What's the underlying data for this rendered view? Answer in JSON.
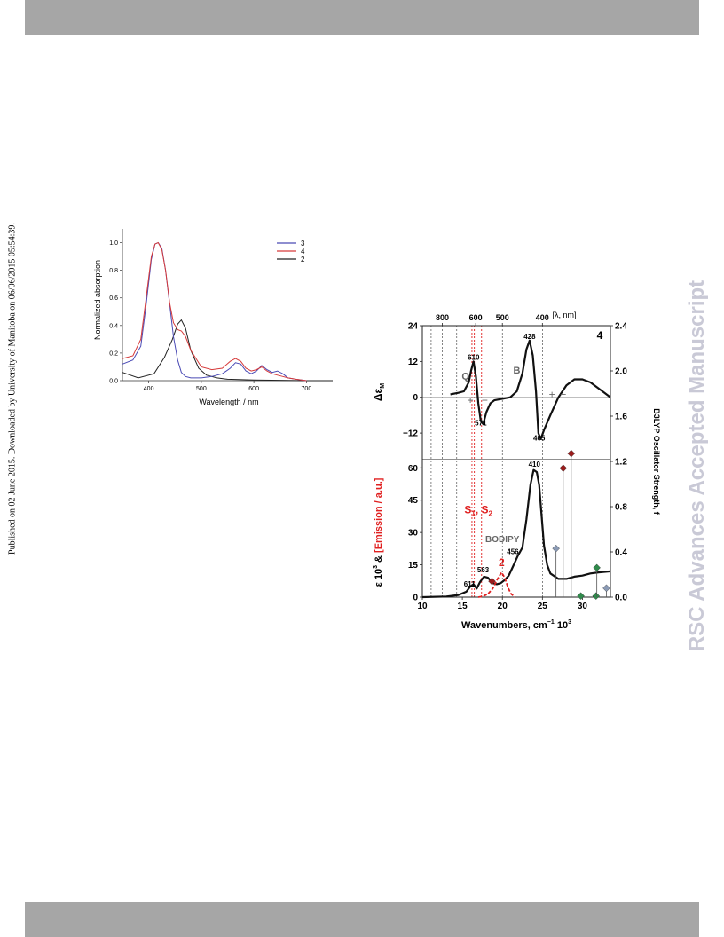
{
  "page": {
    "side_note": "Published on 02 June 2015. Downloaded by University of Manitoba on 06/06/2015 05:54:39.",
    "watermark": "RSC Advances Accepted Manuscript"
  },
  "colors": {
    "band": "#a6a6a6",
    "series_3": "#4b4bb5",
    "series_4": "#d63a3a",
    "series_2": "#222222",
    "emission": "#e02020",
    "bar_red": "#9b1c1c",
    "bar_blue": "#8a9ab5",
    "bar_green": "#2f8a4b",
    "label_grey": "#666666"
  },
  "chart_data": [
    {
      "type": "line",
      "xlabel": "Wavelength / nm",
      "ylabel": "Normalized absorption",
      "xlim": [
        350,
        750
      ],
      "ylim": [
        0,
        1.1
      ],
      "x_ticks": [
        400,
        500,
        600,
        700
      ],
      "x_tick_labels": [
        "400",
        "500",
        "600",
        "700"
      ],
      "y_ticks": [
        0,
        0.2,
        0.4,
        0.6,
        0.8,
        1.0
      ],
      "y_tick_labels": [
        "0.0",
        "0.2",
        "0.4",
        "0.6",
        "0.8",
        "1.0"
      ],
      "legend": "top-right",
      "series": [
        {
          "name": "3",
          "color": "#4b4bb5",
          "x": [
            350,
            370,
            385,
            395,
            405,
            412,
            418,
            425,
            432,
            440,
            447,
            455,
            462,
            470,
            480,
            500,
            520,
            540,
            555,
            565,
            575,
            585,
            595,
            605,
            615,
            625,
            635,
            645,
            655,
            665,
            680,
            700
          ],
          "y": [
            0.12,
            0.15,
            0.25,
            0.55,
            0.88,
            0.99,
            1.0,
            0.96,
            0.8,
            0.55,
            0.32,
            0.15,
            0.06,
            0.03,
            0.02,
            0.02,
            0.03,
            0.05,
            0.09,
            0.13,
            0.12,
            0.07,
            0.05,
            0.07,
            0.11,
            0.08,
            0.06,
            0.07,
            0.05,
            0.02,
            0.01,
            0
          ]
        },
        {
          "name": "4",
          "color": "#d63a3a",
          "x": [
            350,
            370,
            385,
            395,
            405,
            412,
            418,
            425,
            432,
            440,
            447,
            455,
            462,
            470,
            480,
            500,
            520,
            540,
            555,
            565,
            575,
            585,
            595,
            605,
            615,
            625,
            635,
            645,
            655,
            665,
            680,
            700
          ],
          "y": [
            0.16,
            0.18,
            0.3,
            0.6,
            0.9,
            0.99,
            1.0,
            0.95,
            0.8,
            0.56,
            0.42,
            0.37,
            0.36,
            0.32,
            0.22,
            0.1,
            0.08,
            0.09,
            0.14,
            0.16,
            0.14,
            0.09,
            0.07,
            0.08,
            0.1,
            0.07,
            0.05,
            0.04,
            0.03,
            0.02,
            0.01,
            0
          ]
        },
        {
          "name": "2",
          "color": "#222222",
          "x": [
            350,
            380,
            410,
            430,
            445,
            455,
            462,
            470,
            480,
            495,
            510,
            530,
            550,
            600,
            700,
            750
          ],
          "y": [
            0.06,
            0.02,
            0.05,
            0.17,
            0.3,
            0.41,
            0.44,
            0.38,
            0.22,
            0.09,
            0.04,
            0.02,
            0.01,
            0.005,
            0,
            0
          ]
        }
      ]
    },
    {
      "type": "line",
      "panel_label": "4",
      "xlabel": "Wavenumbers, cm",
      "xlabel_sup": "−1",
      "xlabel_tail": " 10",
      "xlabel_tail_sup": "3",
      "xlim": [
        10,
        33.5
      ],
      "x_ticks": [
        10,
        15,
        20,
        25,
        30
      ],
      "x_tick_labels": [
        "10",
        "15",
        "20",
        "25",
        "30"
      ],
      "top_axis_label": "[λ, nm]",
      "top_ticks": [
        {
          "label": "800",
          "nm": 800
        },
        {
          "label": "600",
          "nm": 600
        },
        {
          "label": "500",
          "nm": 500
        },
        {
          "label": "400",
          "nm": 400
        }
      ],
      "vertical_dotted_lines": [
        11.1,
        12.5,
        14.3,
        16.7,
        20.0,
        25.0
      ],
      "red_dotted_lines": [
        16.2,
        16.5,
        17.4
      ],
      "mcd_panel": {
        "ylabel": "Δε",
        "ylabel_sub": "M",
        "ylim": [
          -20,
          24
        ],
        "y_ticks": [
          -12,
          0,
          12,
          24
        ],
        "y_tick_labels": [
          "−12",
          "0",
          "12",
          "24"
        ],
        "x": [
          13.5,
          14.5,
          15.2,
          15.8,
          16.1,
          16.4,
          16.7,
          17.0,
          17.3,
          17.6,
          18.0,
          18.5,
          19.0,
          20.0,
          21.0,
          21.8,
          22.5,
          23.0,
          23.4,
          23.8,
          24.2,
          24.5,
          24.8,
          25.2,
          26.0,
          27.0,
          28.0,
          29.0,
          30.0,
          31.0,
          32.0,
          33.5
        ],
        "y": [
          1,
          1.5,
          2,
          5,
          9,
          12,
          7,
          -2,
          -8,
          -9,
          -5,
          -2,
          -1,
          -0.5,
          0,
          2,
          8,
          16,
          19,
          14,
          2,
          -12,
          -14,
          -11,
          -6,
          0,
          4,
          6,
          6,
          5,
          3,
          0
        ],
        "annotations": [
          {
            "text": "610",
            "x": 16.4,
            "y": 12.5
          },
          {
            "text": "571",
            "x": 17.3,
            "y": -9.5
          },
          {
            "text": "428",
            "x": 23.4,
            "y": 19.5
          },
          {
            "text": "405",
            "x": 24.6,
            "y": -14.5
          }
        ],
        "band_labels": [
          {
            "text": "Q",
            "x": 15.4,
            "y": 6
          },
          {
            "text": "B",
            "x": 21.8,
            "y": 8
          }
        ],
        "sign_marks": [
          {
            "text": "+",
            "x": 16.0,
            "y": -1
          },
          {
            "text": "−",
            "x": 17.8,
            "y": -1
          },
          {
            "text": "+",
            "x": 26.2,
            "y": 1
          },
          {
            "text": "−",
            "x": 27.6,
            "y": 1
          }
        ]
      },
      "abs_panel": {
        "ylabel_black": "ε 10",
        "ylabel_sup": "3",
        "ylabel_amp": " & ",
        "ylabel_red": "[Emission / a.u.]",
        "ylim": [
          0,
          63
        ],
        "y_ticks": [
          0,
          15,
          30,
          45,
          60
        ],
        "y_tick_labels": [
          "0",
          "15",
          "30",
          "45",
          "60"
        ],
        "absorption": {
          "x": [
            10,
            13,
            14.5,
            15.5,
            16.0,
            16.4,
            16.8,
            17.2,
            17.7,
            18.2,
            18.8,
            19.3,
            19.8,
            20.3,
            20.8,
            21.3,
            21.9,
            22.5,
            23.0,
            23.5,
            23.9,
            24.3,
            24.6,
            24.9,
            25.2,
            25.6,
            26.0,
            27.0,
            28.0,
            29.0,
            30.0,
            31.0,
            32.0,
            33.5
          ],
          "y": [
            0,
            0.3,
            1,
            2.5,
            5,
            6,
            4,
            7,
            9.5,
            9,
            6.5,
            6,
            6.5,
            8,
            10,
            14,
            19,
            23,
            36,
            52,
            59,
            58,
            52,
            38,
            24,
            15,
            11,
            8.5,
            8.5,
            9.5,
            10,
            11,
            11.5,
            12
          ]
        },
        "emission": {
          "x": [
            17.0,
            17.6,
            18.2,
            18.8,
            19.4,
            19.9,
            20.3,
            20.7,
            21.1,
            21.6
          ],
          "y": [
            0,
            0.4,
            1.5,
            4.0,
            8.5,
            11.5,
            9.0,
            4.5,
            1.5,
            0
          ]
        },
        "annotations": [
          {
            "text": "611",
            "x": 15.9,
            "y": 5
          },
          {
            "text": "563",
            "x": 17.6,
            "y": 11.5
          },
          {
            "text": "456",
            "x": 21.3,
            "y": 20
          },
          {
            "text": "410",
            "x": 24.0,
            "y": 60.5
          }
        ],
        "labels": [
          {
            "text": "BODIPY",
            "x": 20.0,
            "y": 25.5,
            "color": "grey"
          },
          {
            "text": "2",
            "x": 19.9,
            "y": 14.5,
            "color": "red"
          }
        ],
        "s_label": {
          "s1": "S",
          "s1_sub": "1",
          "sep": ", ",
          "s2": "S",
          "s2_sub": "2",
          "x": 17.0,
          "y": 39
        }
      },
      "osc_axis": {
        "ylabel": "B3LYP Oscillator Strength, f",
        "ylim": [
          0,
          2.4
        ],
        "y_ticks": [
          0.0,
          0.4,
          0.8,
          1.2,
          1.6,
          2.0,
          2.4
        ],
        "y_tick_labels": [
          "0.0",
          "0.4",
          "0.8",
          "1.2",
          "1.6",
          "2.0",
          "2.4"
        ],
        "sticks": [
          {
            "x": 18.7,
            "f": 0.14,
            "color": "red"
          },
          {
            "x": 27.6,
            "f": 1.14,
            "color": "red"
          },
          {
            "x": 28.6,
            "f": 1.27,
            "color": "red"
          },
          {
            "x": 26.7,
            "f": 0.43,
            "color": "blue"
          },
          {
            "x": 33.0,
            "f": 0.08,
            "color": "blue"
          },
          {
            "x": 29.8,
            "f": 0.01,
            "color": "green"
          },
          {
            "x": 31.7,
            "f": 0.01,
            "color": "green"
          },
          {
            "x": 31.8,
            "f": 0.26,
            "color": "green"
          }
        ]
      }
    }
  ]
}
